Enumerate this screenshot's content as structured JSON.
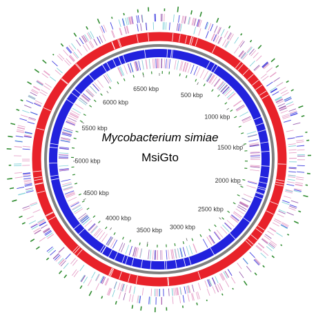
{
  "organism": {
    "species": "Mycobacterium simiae",
    "strain": "MsiGto"
  },
  "genome_map": {
    "type": "circular",
    "genome_length_kbp": 6700,
    "position_labels": [
      {
        "kbp": 500,
        "text": "500 kbp"
      },
      {
        "kbp": 1000,
        "text": "1000 kbp"
      },
      {
        "kbp": 1500,
        "text": "1500 kbp"
      },
      {
        "kbp": 2000,
        "text": "2000 kbp"
      },
      {
        "kbp": 2500,
        "text": "2500 kbp"
      },
      {
        "kbp": 3000,
        "text": "3000 kbp"
      },
      {
        "kbp": 3500,
        "text": "3500 kbp"
      },
      {
        "kbp": 4000,
        "text": "4000 kbp"
      },
      {
        "kbp": 4500,
        "text": "4500 kbp"
      },
      {
        "kbp": 5000,
        "text": "5000 kbp"
      },
      {
        "kbp": 5500,
        "text": "5500 kbp"
      },
      {
        "kbp": 6000,
        "text": "6000 kbp"
      },
      {
        "kbp": 6500,
        "text": "6500 kbp"
      }
    ],
    "colors": {
      "red_ring": "#e8222a",
      "grey_ring": "#808080",
      "blue_ring": "#2222dd",
      "feature_pink": "#e6a0c8",
      "feature_purple": "#9a5fb0",
      "feature_cyan": "#7fd0d8",
      "feature_blue": "#3a3adf",
      "tick_green": "#2e8b2e",
      "background": "#ffffff"
    }
  }
}
